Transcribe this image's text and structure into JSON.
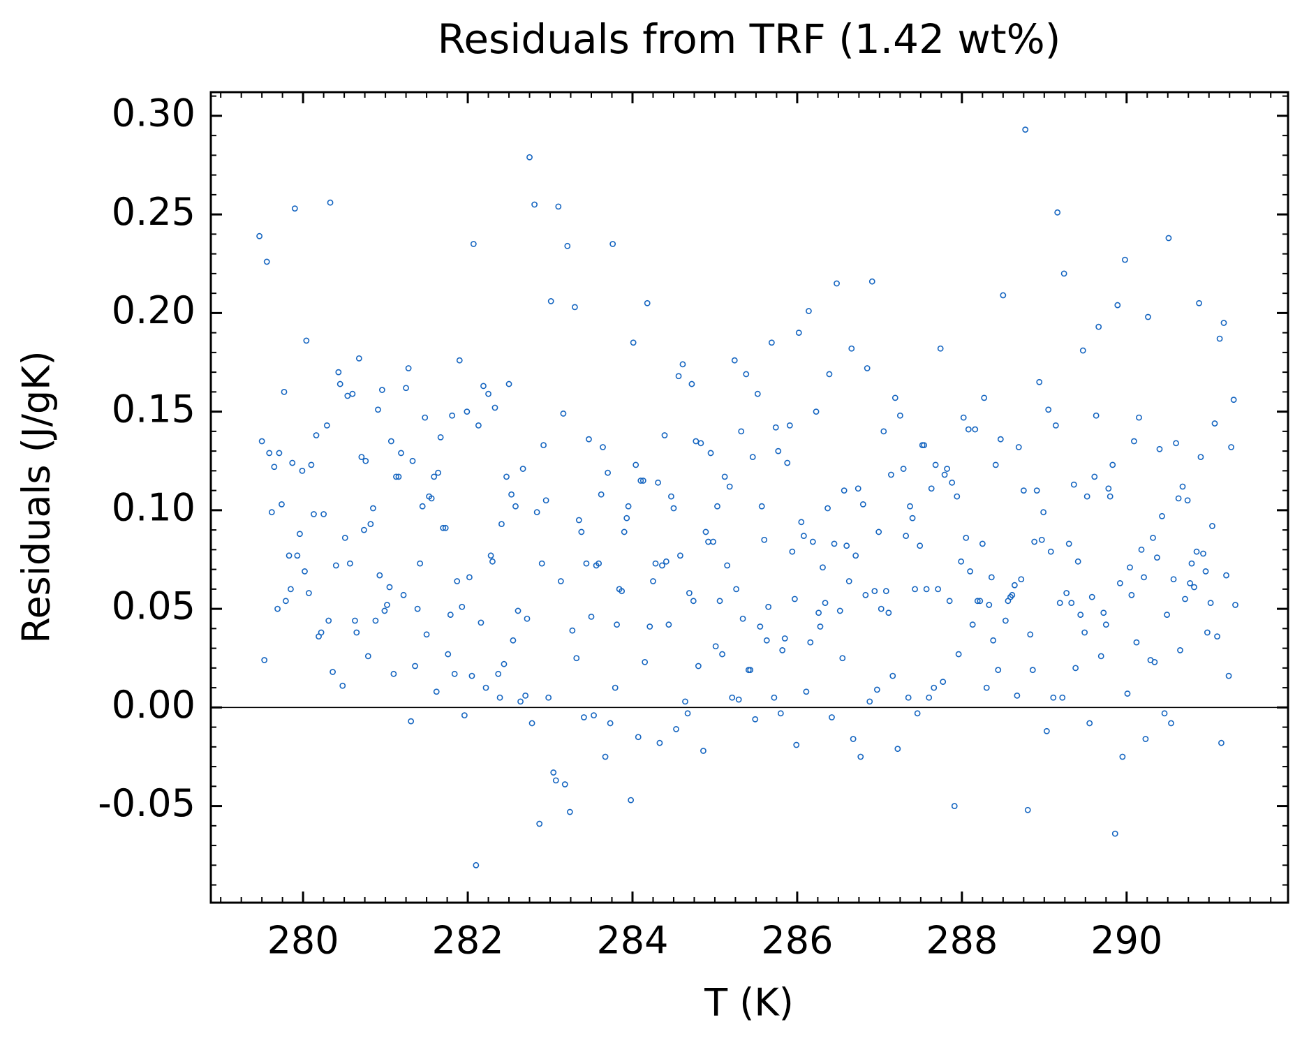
{
  "chart_data": {
    "type": "scatter",
    "title": "Residuals from TRF (1.42 wt%)",
    "xlabel": "T (K)",
    "ylabel": "Residuals (J/gK)",
    "color": "#1565c0",
    "marker": "open-circle",
    "hline": 0,
    "xlim": [
      278.88,
      291.96
    ],
    "ylim": [
      -0.099,
      0.312
    ],
    "xticks": [
      280,
      282,
      284,
      286,
      288,
      290
    ],
    "yticks": [
      {
        "value": -0.05,
        "label": "-0.05"
      },
      {
        "value": 0,
        "label": "0.00"
      },
      {
        "value": 0.05,
        "label": "0.05"
      },
      {
        "value": 0.1,
        "label": "0.10"
      },
      {
        "value": 0.15,
        "label": "0.15"
      },
      {
        "value": 0.2,
        "label": "0.20"
      },
      {
        "value": 0.25,
        "label": "0.25"
      },
      {
        "value": 0.3,
        "label": "0.30"
      }
    ],
    "x": [
      279.47,
      279.5,
      279.53,
      279.56,
      279.59,
      279.62,
      279.65,
      279.69,
      279.71,
      279.74,
      279.77,
      279.79,
      279.83,
      279.85,
      279.87,
      279.9,
      279.93,
      279.96,
      279.99,
      280.02,
      280.04,
      280.07,
      280.1,
      280.13,
      280.16,
      280.19,
      280.22,
      280.25,
      280.29,
      280.31,
      280.33,
      280.36,
      280.4,
      280.43,
      280.45,
      280.48,
      280.51,
      280.54,
      280.57,
      280.6,
      280.63,
      280.65,
      280.68,
      280.71,
      280.74,
      280.76,
      280.79,
      280.82,
      280.85,
      280.88,
      280.91,
      280.93,
      280.96,
      280.99,
      281.02,
      281.05,
      281.07,
      281.1,
      281.13,
      281.16,
      281.19,
      281.22,
      281.25,
      281.28,
      281.31,
      281.33,
      281.36,
      281.39,
      281.42,
      281.45,
      281.48,
      281.5,
      281.53,
      281.56,
      281.59,
      281.62,
      281.64,
      281.67,
      281.7,
      281.73,
      281.76,
      281.79,
      281.81,
      281.84,
      281.87,
      281.9,
      281.93,
      281.96,
      281.99,
      282.02,
      282.05,
      282.07,
      282.1,
      282.13,
      282.16,
      282.19,
      282.22,
      282.25,
      282.28,
      282.3,
      282.33,
      282.37,
      282.39,
      282.41,
      282.44,
      282.47,
      282.5,
      282.53,
      282.55,
      282.58,
      282.61,
      282.64,
      282.67,
      282.7,
      282.72,
      282.75,
      282.78,
      282.81,
      282.84,
      282.87,
      282.9,
      282.92,
      282.95,
      282.98,
      283.01,
      283.04,
      283.07,
      283.1,
      283.13,
      283.16,
      283.18,
      283.21,
      283.24,
      283.27,
      283.3,
      283.32,
      283.35,
      283.38,
      283.41,
      283.44,
      283.47,
      283.5,
      283.53,
      283.56,
      283.59,
      283.62,
      283.64,
      283.67,
      283.7,
      283.73,
      283.76,
      283.79,
      283.81,
      283.84,
      283.87,
      283.9,
      283.93,
      283.95,
      283.98,
      284.01,
      284.04,
      284.07,
      284.1,
      284.13,
      284.15,
      284.18,
      284.21,
      284.25,
      284.28,
      284.31,
      284.33,
      284.36,
      284.39,
      284.41,
      284.44,
      284.47,
      284.5,
      284.53,
      284.56,
      284.58,
      284.61,
      284.64,
      284.67,
      284.69,
      284.72,
      284.74,
      284.77,
      284.8,
      284.83,
      284.86,
      284.89,
      284.92,
      284.95,
      284.98,
      285.01,
      285.03,
      285.06,
      285.09,
      285.12,
      285.15,
      285.18,
      285.21,
      285.24,
      285.26,
      285.29,
      285.32,
      285.34,
      285.38,
      285.41,
      285.43,
      285.46,
      285.49,
      285.52,
      285.55,
      285.57,
      285.6,
      285.63,
      285.65,
      285.69,
      285.72,
      285.74,
      285.77,
      285.8,
      285.82,
      285.85,
      285.88,
      285.91,
      285.94,
      285.97,
      285.99,
      286.02,
      286.05,
      286.08,
      286.11,
      286.14,
      286.16,
      286.19,
      286.23,
      286.26,
      286.28,
      286.31,
      286.34,
      286.37,
      286.39,
      286.42,
      286.45,
      286.48,
      286.52,
      286.55,
      286.57,
      286.6,
      286.63,
      286.66,
      286.68,
      286.71,
      286.74,
      286.77,
      286.8,
      286.83,
      286.85,
      286.88,
      286.91,
      286.94,
      286.97,
      286.99,
      287.02,
      287.05,
      287.08,
      287.11,
      287.14,
      287.16,
      287.19,
      287.22,
      287.25,
      287.29,
      287.32,
      287.35,
      287.37,
      287.4,
      287.43,
      287.46,
      287.49,
      287.52,
      287.54,
      287.57,
      287.6,
      287.63,
      287.66,
      287.68,
      287.71,
      287.74,
      287.77,
      287.79,
      287.82,
      287.85,
      287.88,
      287.91,
      287.94,
      287.96,
      287.99,
      288.02,
      288.05,
      288.08,
      288.1,
      288.13,
      288.16,
      288.19,
      288.22,
      288.25,
      288.27,
      288.3,
      288.33,
      288.36,
      288.38,
      288.41,
      288.44,
      288.47,
      288.5,
      288.53,
      288.56,
      288.59,
      288.61,
      288.64,
      288.67,
      288.69,
      288.72,
      288.75,
      288.77,
      288.8,
      288.83,
      288.86,
      288.88,
      288.91,
      288.94,
      288.97,
      288.99,
      289.03,
      289.05,
      289.08,
      289.11,
      289.14,
      289.16,
      289.19,
      289.22,
      289.24,
      289.27,
      289.3,
      289.33,
      289.36,
      289.38,
      289.41,
      289.44,
      289.47,
      289.49,
      289.52,
      289.55,
      289.58,
      289.61,
      289.63,
      289.66,
      289.69,
      289.72,
      289.75,
      289.78,
      289.8,
      289.83,
      289.86,
      289.89,
      289.92,
      289.95,
      289.98,
      290.01,
      290.04,
      290.06,
      290.09,
      290.12,
      290.15,
      290.18,
      290.21,
      290.23,
      290.26,
      290.29,
      290.32,
      290.34,
      290.37,
      290.4,
      290.43,
      290.46,
      290.49,
      290.51,
      290.54,
      290.57,
      290.6,
      290.63,
      290.65,
      290.68,
      290.71,
      290.74,
      290.77,
      290.79,
      290.82,
      290.85,
      290.88,
      290.9,
      290.93,
      290.96,
      290.98,
      291.02,
      291.04,
      291.07,
      291.1,
      291.13,
      291.15,
      291.18,
      291.21,
      291.24,
      291.27,
      291.3,
      291.32
    ],
    "values": [
      0.239,
      0.135,
      0.024,
      0.226,
      0.129,
      0.099,
      0.122,
      0.05,
      0.129,
      0.103,
      0.16,
      0.054,
      0.077,
      0.06,
      0.124,
      0.253,
      0.077,
      0.088,
      0.12,
      0.069,
      0.186,
      0.058,
      0.123,
      0.098,
      0.138,
      0.036,
      0.038,
      0.098,
      0.143,
      0.044,
      0.256,
      0.018,
      0.072,
      0.17,
      0.164,
      0.011,
      0.086,
      0.158,
      0.073,
      0.159,
      0.044,
      0.038,
      0.177,
      0.127,
      0.09,
      0.125,
      0.026,
      0.093,
      0.101,
      0.044,
      0.151,
      0.067,
      0.161,
      0.049,
      0.052,
      0.061,
      0.135,
      0.017,
      0.117,
      0.117,
      0.129,
      0.057,
      0.162,
      0.172,
      -0.007,
      0.125,
      0.021,
      0.05,
      0.073,
      0.102,
      0.147,
      0.037,
      0.107,
      0.106,
      0.117,
      0.008,
      0.119,
      0.137,
      0.091,
      0.091,
      0.027,
      0.047,
      0.148,
      0.017,
      0.064,
      0.176,
      0.051,
      -0.004,
      0.15,
      0.066,
      0.016,
      0.235,
      -0.08,
      0.143,
      0.043,
      0.163,
      0.01,
      0.159,
      0.077,
      0.074,
      0.152,
      0.017,
      0.005,
      0.093,
      0.022,
      0.117,
      0.164,
      0.108,
      0.034,
      0.102,
      0.049,
      0.003,
      0.121,
      0.006,
      0.045,
      0.279,
      -0.008,
      0.255,
      0.099,
      -0.059,
      0.073,
      0.133,
      0.105,
      0.005,
      0.206,
      -0.033,
      -0.037,
      0.254,
      0.064,
      0.149,
      -0.039,
      0.234,
      -0.053,
      0.039,
      0.203,
      0.025,
      0.095,
      0.089,
      -0.005,
      0.073,
      0.136,
      0.046,
      -0.004,
      0.072,
      0.073,
      0.108,
      0.132,
      -0.025,
      0.119,
      -0.008,
      0.235,
      0.01,
      0.042,
      0.06,
      0.059,
      0.089,
      0.096,
      0.102,
      -0.047,
      0.185,
      0.123,
      -0.015,
      0.115,
      0.115,
      0.023,
      0.205,
      0.041,
      0.064,
      0.073,
      0.114,
      -0.018,
      0.072,
      0.138,
      0.074,
      0.042,
      0.107,
      0.101,
      -0.011,
      0.168,
      0.077,
      0.174,
      0.003,
      -0.003,
      0.058,
      0.164,
      0.054,
      0.135,
      0.021,
      0.134,
      -0.022,
      0.089,
      0.084,
      0.129,
      0.084,
      0.031,
      0.102,
      0.054,
      0.027,
      0.117,
      0.072,
      0.112,
      0.005,
      0.176,
      0.06,
      0.004,
      0.14,
      0.045,
      0.169,
      0.019,
      0.019,
      0.127,
      -0.006,
      0.159,
      0.041,
      0.102,
      0.085,
      0.034,
      0.051,
      0.185,
      0.005,
      0.142,
      0.13,
      -0.003,
      0.029,
      0.035,
      0.124,
      0.143,
      0.079,
      0.055,
      -0.019,
      0.19,
      0.094,
      0.087,
      0.008,
      0.201,
      0.033,
      0.084,
      0.15,
      0.048,
      0.041,
      0.071,
      0.053,
      0.101,
      0.169,
      -0.005,
      0.083,
      0.215,
      0.049,
      0.025,
      0.11,
      0.082,
      0.064,
      0.182,
      -0.016,
      0.077,
      0.111,
      -0.025,
      0.103,
      0.057,
      0.172,
      0.003,
      0.216,
      0.059,
      0.009,
      0.089,
      0.05,
      0.14,
      0.059,
      0.048,
      0.118,
      0.016,
      0.157,
      -0.021,
      0.148,
      0.121,
      0.087,
      0.005,
      0.102,
      0.096,
      0.06,
      -0.003,
      0.082,
      0.133,
      0.133,
      0.06,
      0.005,
      0.111,
      0.01,
      0.123,
      0.06,
      0.182,
      0.013,
      0.118,
      0.121,
      0.054,
      0.114,
      -0.05,
      0.107,
      0.027,
      0.074,
      0.147,
      0.086,
      0.141,
      0.069,
      0.042,
      0.141,
      0.054,
      0.054,
      0.083,
      0.157,
      0.01,
      0.052,
      0.066,
      0.034,
      0.123,
      0.019,
      0.136,
      0.209,
      0.044,
      0.054,
      0.056,
      0.057,
      0.062,
      0.006,
      0.132,
      0.065,
      0.11,
      0.293,
      -0.052,
      0.037,
      0.019,
      0.084,
      0.11,
      0.165,
      0.085,
      0.099,
      -0.012,
      0.151,
      0.079,
      0.005,
      0.143,
      0.251,
      0.053,
      0.005,
      0.22,
      0.058,
      0.083,
      0.053,
      0.113,
      0.02,
      0.074,
      0.047,
      0.181,
      0.038,
      0.107,
      -0.008,
      0.056,
      0.117,
      0.148,
      0.193,
      0.026,
      0.048,
      0.042,
      0.111,
      0.107,
      0.123,
      -0.064,
      0.204,
      0.063,
      -0.025,
      0.227,
      0.007,
      0.071,
      0.057,
      0.135,
      0.033,
      0.147,
      0.08,
      0.066,
      -0.016,
      0.198,
      0.024,
      0.086,
      0.023,
      0.076,
      0.131,
      0.097,
      -0.003,
      0.047,
      0.238,
      -0.008,
      0.065,
      0.134,
      0.106,
      0.029,
      0.112,
      0.055,
      0.105,
      0.063,
      0.073,
      0.061,
      0.079,
      0.205,
      0.127,
      0.078,
      0.069,
      0.038,
      0.053,
      0.092,
      0.144,
      0.036,
      0.187,
      -0.018,
      0.195,
      0.067,
      0.016,
      0.132,
      0.156,
      0.052
    ]
  }
}
